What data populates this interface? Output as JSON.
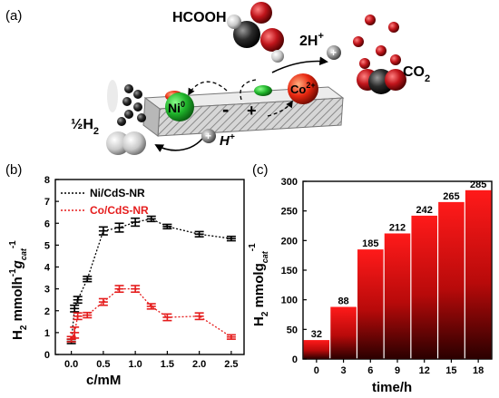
{
  "panels": {
    "a": "(a)",
    "b": "(b)",
    "c": "(c)"
  },
  "scheme": {
    "hcooh": "HCOOH",
    "two_h_plus": "2H",
    "two_h_plus_sup": "+",
    "co2": "CO",
    "co2_sub": "2",
    "half_h2": "½H",
    "half_h2_sub": "2",
    "h_plus": "H",
    "h_plus_sup": "+",
    "ni": "Ni",
    "ni_sup": "0",
    "co": "Co",
    "co_sup": "2+",
    "minus": "-",
    "plus": "+",
    "colors": {
      "ni": "#1fb32a",
      "co": "#e82710",
      "rod": "#c9c9c9",
      "oxygen": "#c0151b",
      "carbon": "#2a2a2a"
    }
  },
  "chart_data": [
    {
      "type": "line",
      "panel": "b",
      "xlabel": "c/mM",
      "ylabel": "H",
      "ylabel_sub": "2",
      "ylabel_rest": " mmolh",
      "ylabel_sup": "-1",
      "ylabel_g": "g",
      "ylabel_g_sub": "cat",
      "ylabel_g_sup": "-1",
      "xlim": [
        -0.25,
        2.7
      ],
      "ylim": [
        0,
        8
      ],
      "xticks": [
        "0.0",
        "0.5",
        "1.0",
        "1.5",
        "2.0",
        "2.5"
      ],
      "xtick_values": [
        0,
        0.5,
        1.0,
        1.5,
        2.0,
        2.5
      ],
      "yticks": [
        "0",
        "1",
        "2",
        "3",
        "4",
        "5",
        "6",
        "7",
        "8"
      ],
      "legend_position": "top-left",
      "series": [
        {
          "name": "Ni/CdS-NR",
          "color": "#000000",
          "x": [
            0.0,
            0.05,
            0.1,
            0.25,
            0.5,
            0.75,
            1.0,
            1.25,
            1.5,
            2.0,
            2.5
          ],
          "y": [
            0.6,
            2.1,
            2.5,
            3.45,
            5.65,
            5.8,
            6.05,
            6.2,
            5.85,
            5.5,
            5.3
          ],
          "err": [
            0.1,
            0.15,
            0.15,
            0.12,
            0.18,
            0.2,
            0.18,
            0.12,
            0.1,
            0.12,
            0.1
          ]
        },
        {
          "name": "Co/CdS-NR",
          "color": "#e51c1c",
          "x": [
            0.0,
            0.05,
            0.1,
            0.25,
            0.5,
            0.75,
            1.0,
            1.25,
            1.5,
            2.0,
            2.5
          ],
          "y": [
            0.7,
            1.0,
            1.75,
            1.8,
            2.4,
            3.0,
            3.0,
            2.2,
            1.7,
            1.75,
            0.8
          ],
          "err": [
            0.12,
            0.25,
            0.15,
            0.12,
            0.15,
            0.15,
            0.15,
            0.12,
            0.15,
            0.15,
            0.1
          ]
        }
      ]
    },
    {
      "type": "bar",
      "panel": "c",
      "xlabel": "time/h",
      "ylabel": "H",
      "ylabel_sub": "2",
      "ylabel_rest": " mmolg",
      "ylabel_sub2": "cat",
      "ylabel_sup": "-1",
      "categories": [
        "0",
        "3",
        "6",
        "9",
        "12",
        "15",
        "18"
      ],
      "values": [
        32,
        88,
        185,
        212,
        242,
        265,
        285
      ],
      "ylim": [
        0,
        300
      ],
      "yticks": [
        "0",
        "50",
        "100",
        "150",
        "200",
        "250",
        "300"
      ],
      "bar_color_top": "#ff1a1a",
      "bar_color_bottom": "#2a0000"
    }
  ]
}
